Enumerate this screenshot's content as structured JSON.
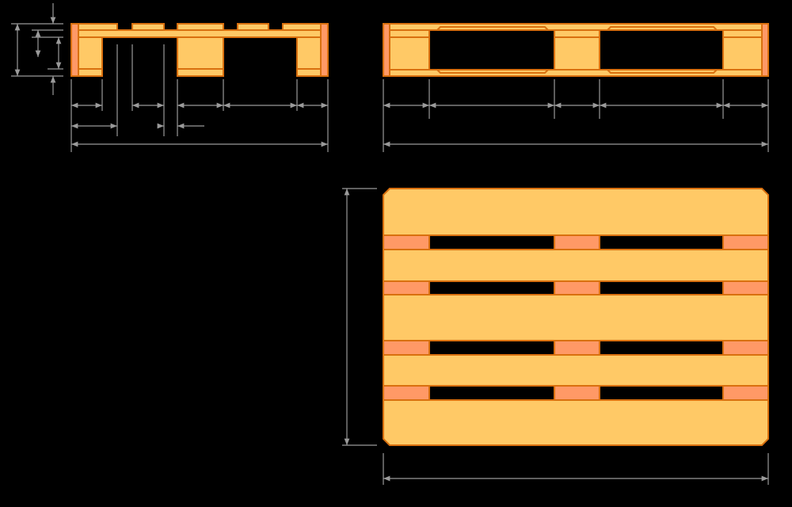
{
  "diagram": {
    "colors": {
      "background": "#000000",
      "wood": "#FFC966",
      "block": "#FF9966",
      "outline": "#D9700F",
      "dimension": "#9A9A9A"
    }
  }
}
